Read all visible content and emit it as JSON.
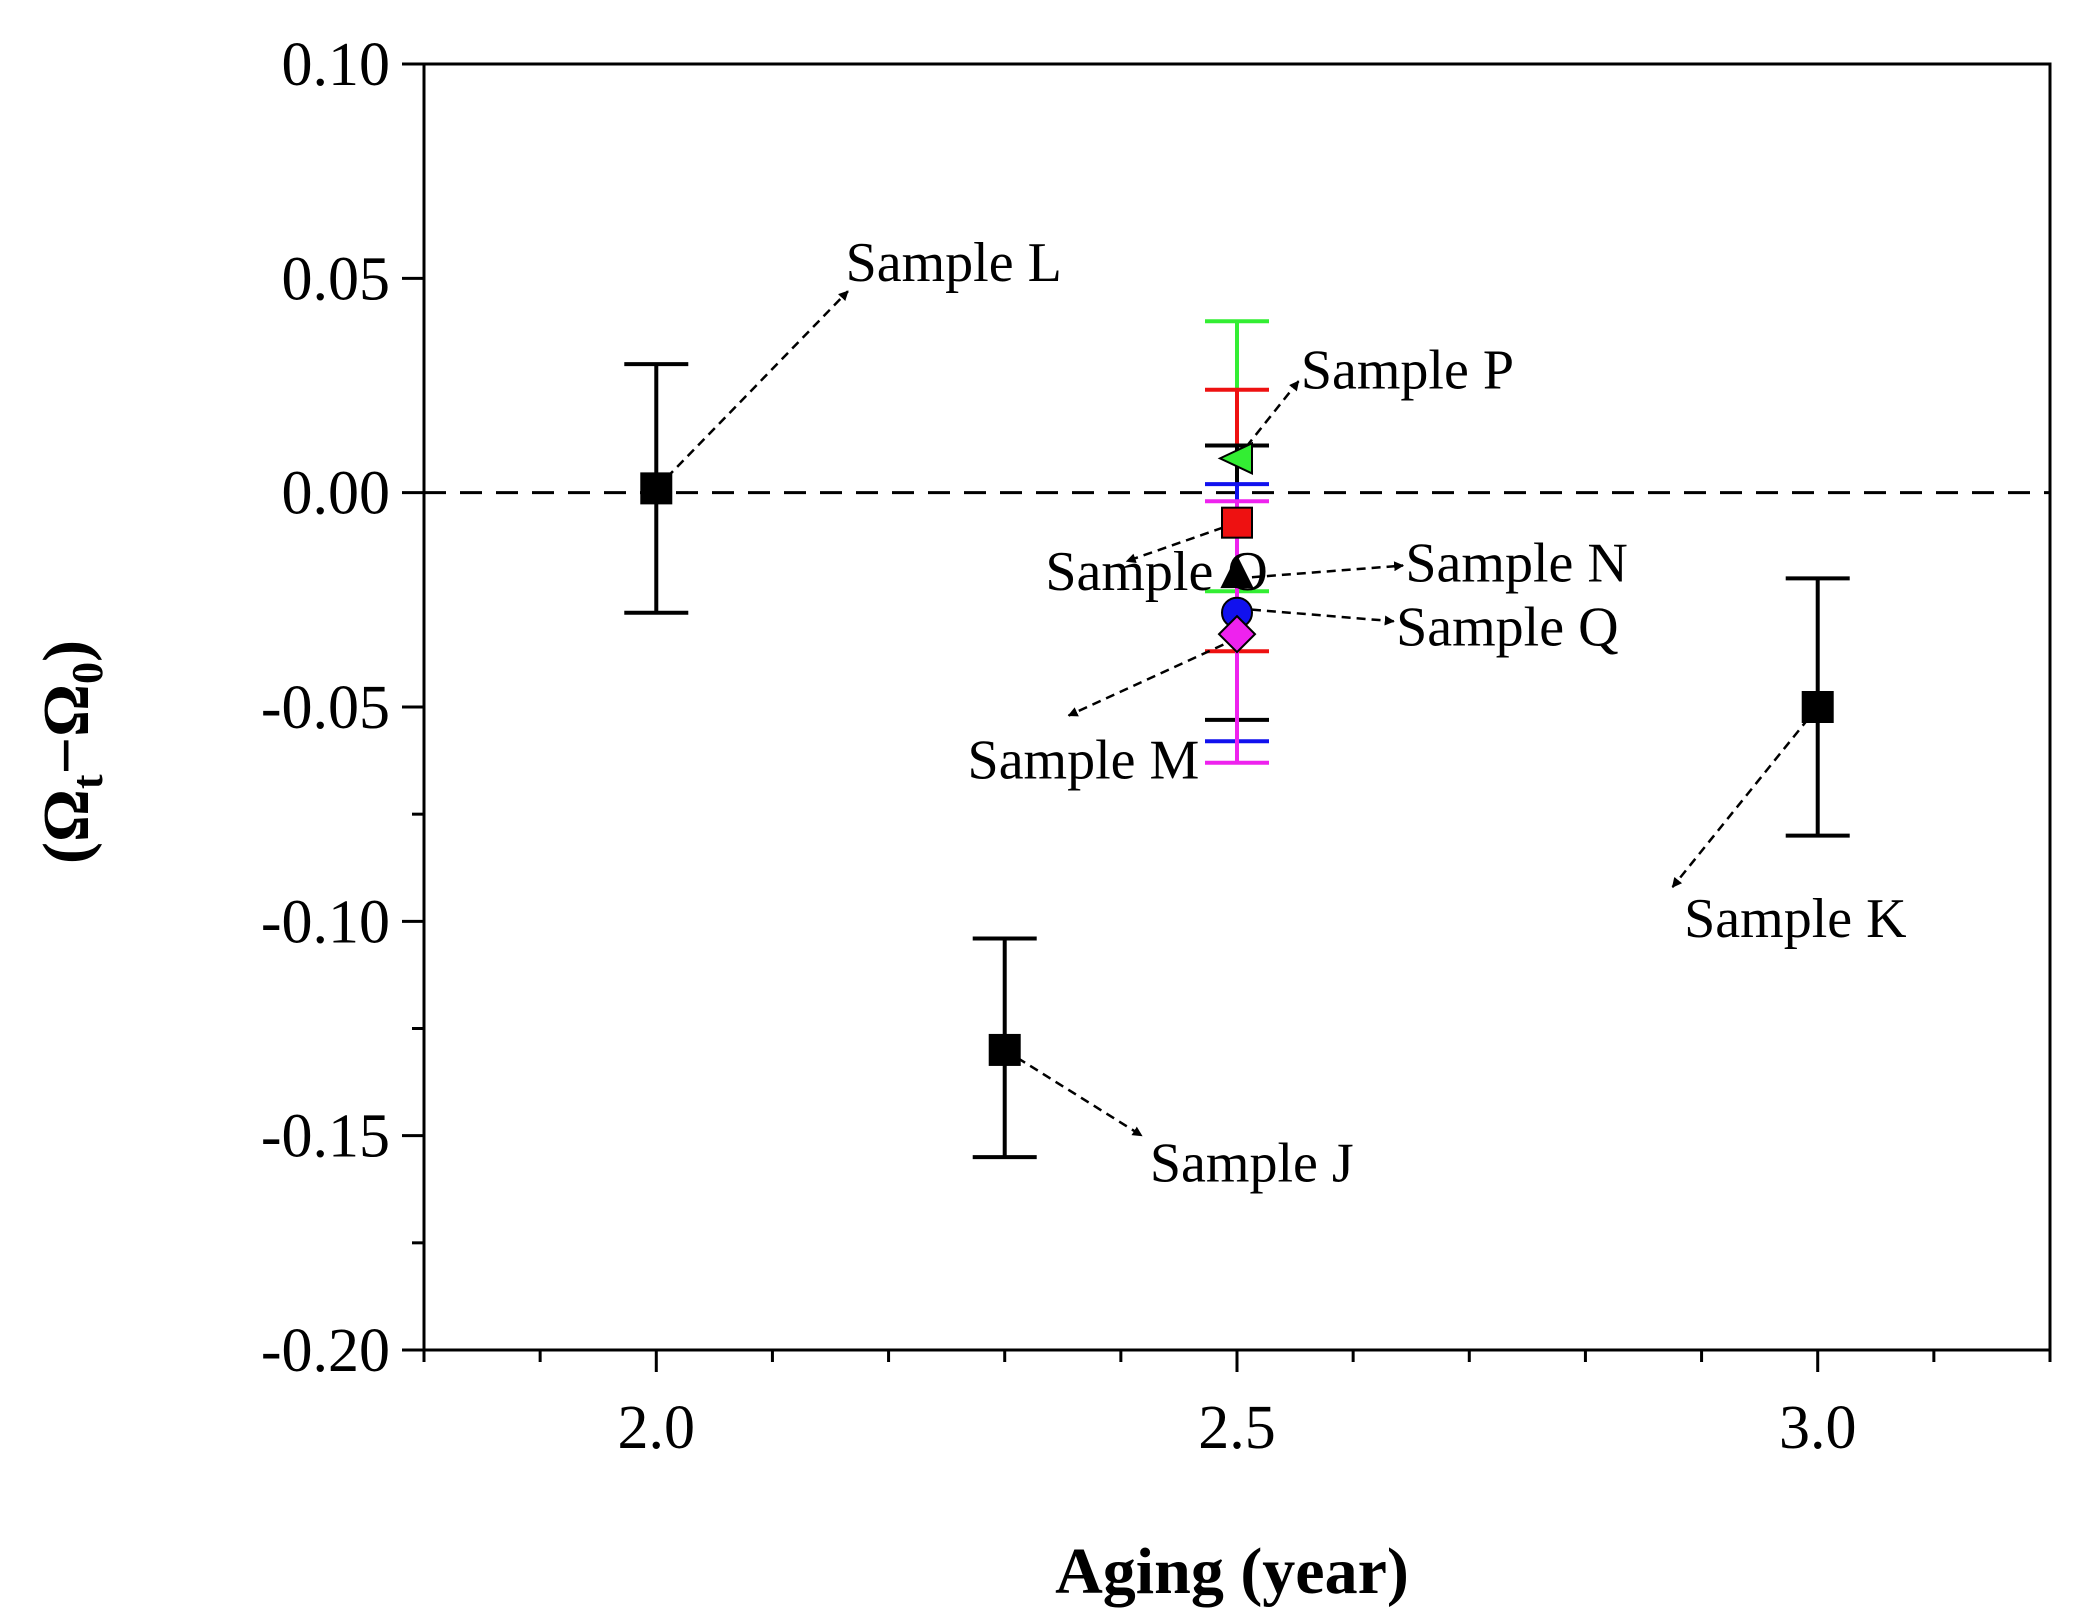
{
  "chart_data": {
    "type": "scatter",
    "title": "",
    "xlabel": "Aging (year)",
    "ylabel": {
      "open": "(Ω",
      "sub1": "t",
      "mid": "−Ω",
      "sub2": "0",
      "close": ")"
    },
    "xlim": [
      1.8,
      3.2
    ],
    "ylim": [
      -0.2,
      0.1
    ],
    "xticks": [
      "2.0",
      "2.5",
      "3.0"
    ],
    "yticks": [
      "0.10",
      "0.05",
      "0.00",
      "-0.05",
      "-0.10",
      "-0.15",
      "-0.20"
    ],
    "reference_line": {
      "y": 0.0,
      "style": "dashed"
    },
    "series": [
      {
        "name": "Sample L",
        "x": 2.0,
        "y": 0.001,
        "err_low": -0.028,
        "err_high": 0.03,
        "marker": "square",
        "color": "#000000"
      },
      {
        "name": "Sample J",
        "x": 2.3,
        "y": -0.13,
        "err_low": -0.155,
        "err_high": -0.104,
        "marker": "square",
        "color": "#000000"
      },
      {
        "name": "Sample K",
        "x": 3.0,
        "y": -0.05,
        "err_low": -0.08,
        "err_high": -0.02,
        "marker": "square",
        "color": "#000000"
      },
      {
        "name": "Sample P",
        "x": 2.5,
        "y": 0.008,
        "err_low": -0.023,
        "err_high": 0.04,
        "marker": "triangle-left",
        "color": "#33ee33"
      },
      {
        "name": "Sample O",
        "x": 2.5,
        "y": -0.007,
        "err_low": -0.037,
        "err_high": 0.024,
        "marker": "square",
        "color": "#ee1111"
      },
      {
        "name": "Sample N",
        "x": 2.5,
        "y": -0.019,
        "err_low": -0.053,
        "err_high": 0.011,
        "marker": "triangle-up",
        "color": "#000000"
      },
      {
        "name": "Sample Q",
        "x": 2.5,
        "y": -0.028,
        "err_low": -0.058,
        "err_high": 0.002,
        "marker": "circle",
        "color": "#1111ee"
      },
      {
        "name": "Sample M",
        "x": 2.5,
        "y": -0.033,
        "err_low": -0.063,
        "err_high": -0.002,
        "marker": "diamond",
        "color": "#ee22ee"
      }
    ],
    "annotations": [
      {
        "text": "Sample L",
        "label_x": 2.163,
        "label_y": 0.054,
        "arrow_from": [
          2.0,
          0.001
        ],
        "arrow_to": [
          2.165,
          0.047
        ]
      },
      {
        "text": "Sample P",
        "label_x": 2.555,
        "label_y": 0.029,
        "arrow_from": [
          2.5,
          0.008
        ],
        "arrow_to": [
          2.553,
          0.026
        ]
      },
      {
        "text": "Sample O",
        "label_x": 2.335,
        "label_y": -0.018,
        "arrow_from": [
          2.5,
          -0.007
        ],
        "arrow_to": [
          2.405,
          -0.016
        ]
      },
      {
        "text": "Sample N",
        "label_x": 2.645,
        "label_y": -0.016,
        "arrow_from": [
          2.5,
          -0.02
        ],
        "arrow_to": [
          2.643,
          -0.017
        ]
      },
      {
        "text": "Sample Q",
        "label_x": 2.637,
        "label_y": -0.031,
        "arrow_from": [
          2.5,
          -0.027
        ],
        "arrow_to": [
          2.635,
          -0.03
        ]
      },
      {
        "text": "Sample M",
        "label_x": 2.268,
        "label_y": -0.062,
        "arrow_from": [
          2.5,
          -0.034
        ],
        "arrow_to": [
          2.355,
          -0.052
        ]
      },
      {
        "text": "Sample K",
        "label_x": 2.885,
        "label_y": -0.099,
        "arrow_from": [
          3.0,
          -0.05
        ],
        "arrow_to": [
          2.875,
          -0.092
        ]
      },
      {
        "text": "Sample J",
        "label_x": 2.425,
        "label_y": -0.156,
        "arrow_from": [
          2.3,
          -0.13
        ],
        "arrow_to": [
          2.418,
          -0.15
        ]
      }
    ]
  }
}
